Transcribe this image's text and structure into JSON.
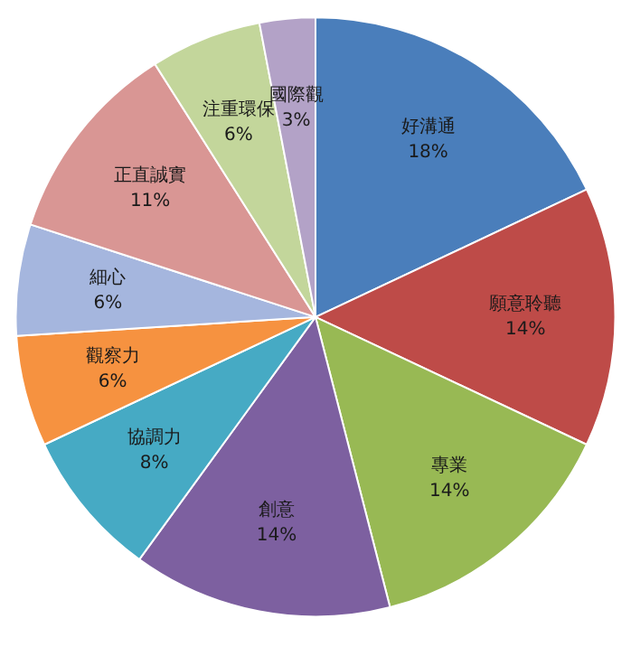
{
  "chart_data": {
    "type": "pie",
    "categories": [
      "好溝通",
      "願意聆聽",
      "專業",
      "創意",
      "協調力",
      "觀察力",
      "細心",
      "正直誠實",
      "注重環保",
      "國際觀"
    ],
    "values": [
      18,
      14,
      14,
      14,
      8,
      6,
      6,
      11,
      6,
      3
    ],
    "value_labels": [
      "18%",
      "14%",
      "14%",
      "14%",
      "8%",
      "6%",
      "6%",
      "11%",
      "6%",
      "3%"
    ],
    "colors": [
      "#4a7ebb",
      "#be4b48",
      "#98b954",
      "#7d60a0",
      "#46aac4",
      "#f69240",
      "#a5b6de",
      "#d99694",
      "#c3d69b",
      "#b3a2c7"
    ],
    "legend": false
  }
}
